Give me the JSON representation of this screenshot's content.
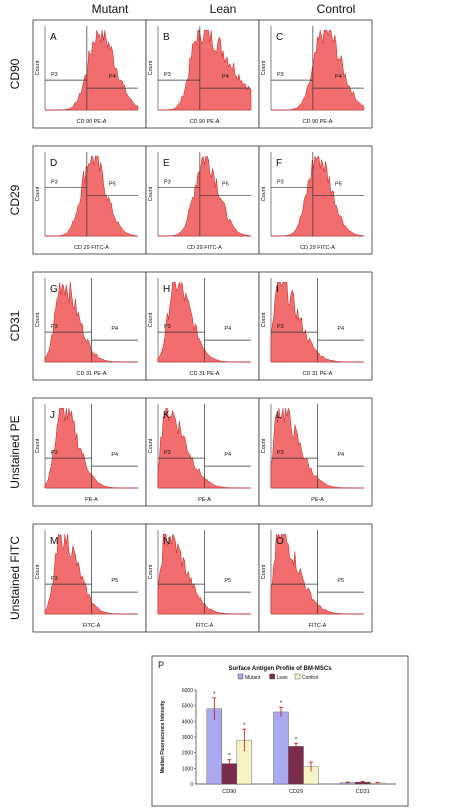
{
  "columns": [
    "Mutant",
    "Lean",
    "Control"
  ],
  "rows": [
    "CD90",
    "CD29",
    "CD31",
    "Unstained PE",
    "Unstained FITC"
  ],
  "count_label": "Count",
  "panels": [
    {
      "letter": "A",
      "xlabel": "CD 90 PE-A",
      "left_gate": "P3",
      "right_gate": "P4",
      "shape": "high_right"
    },
    {
      "letter": "B",
      "xlabel": "CD 90 PE-A",
      "left_gate": "P3",
      "right_gate": "P4",
      "shape": "mid_skew"
    },
    {
      "letter": "C",
      "xlabel": "CD 90 PE-A",
      "left_gate": "P3",
      "right_gate": "P4",
      "shape": "high_right"
    },
    {
      "letter": "D",
      "xlabel": "CD 29 FITC-A",
      "left_gate": "P3",
      "right_gate": "P5",
      "shape": "mid"
    },
    {
      "letter": "E",
      "xlabel": "CD 29 FITC-A",
      "left_gate": "P3",
      "right_gate": "P5",
      "shape": "mid"
    },
    {
      "letter": "F",
      "xlabel": "CD 29 FITC-A",
      "left_gate": "P3",
      "right_gate": "P5",
      "shape": "mid"
    },
    {
      "letter": "G",
      "xlabel": "CD 31 PE-A",
      "left_gate": "P3",
      "right_gate": "P4",
      "shape": "low"
    },
    {
      "letter": "H",
      "xlabel": "CD 31 PE-A",
      "left_gate": "P3",
      "right_gate": "P4",
      "shape": "low"
    },
    {
      "letter": "I",
      "xlabel": "CD 31 PE-A",
      "left_gate": "P3",
      "right_gate": "P4",
      "shape": "verylow"
    },
    {
      "letter": "J",
      "xlabel": "PE-A",
      "left_gate": "P3",
      "right_gate": "P4",
      "shape": "low"
    },
    {
      "letter": "K",
      "xlabel": "PE-A",
      "left_gate": "P3",
      "right_gate": "P4",
      "shape": "verylow"
    },
    {
      "letter": "L",
      "xlabel": "PE-A",
      "left_gate": "P3",
      "right_gate": "P4",
      "shape": "verylow"
    },
    {
      "letter": "M",
      "xlabel": "FITC-A",
      "left_gate": "P3",
      "right_gate": "P5",
      "shape": "low"
    },
    {
      "letter": "N",
      "xlabel": "FITC-A",
      "left_gate": "",
      "right_gate": "P5",
      "shape": "verylow"
    },
    {
      "letter": "O",
      "xlabel": "FITC-A",
      "left_gate": "",
      "right_gate": "P5",
      "shape": "verylow"
    }
  ],
  "bar_panel_letter": "P",
  "colors": {
    "histogram": "#f26d6d",
    "histogram_edge": "#c41f1f",
    "mutant": "#a9a9ef",
    "lean": "#7a2a4a",
    "control": "#f7f3c4",
    "error": "#c01010"
  },
  "chart_data": {
    "type": "bar",
    "title": "Surface Antigen Profile of BM-MSCs",
    "ylabel": "Median Fluorescence Intensity",
    "categories": [
      "CD90",
      "CD29",
      "CD31"
    ],
    "ylim": [
      0,
      6000
    ],
    "yticks": [
      "0",
      "1000",
      "2000",
      "3000",
      "4000",
      "5000",
      "6000"
    ],
    "series": [
      {
        "name": "Mutant",
        "values": [
          4800,
          4600,
          80
        ],
        "errors": [
          700,
          300,
          40
        ]
      },
      {
        "name": "Lean",
        "values": [
          1300,
          2400,
          120
        ],
        "errors": [
          250,
          200,
          50
        ]
      },
      {
        "name": "Control",
        "values": [
          2800,
          1100,
          60
        ],
        "errors": [
          700,
          300,
          30
        ]
      }
    ],
    "annotations": [
      "*",
      "*",
      "*",
      "*",
      "*"
    ],
    "legend": "top"
  }
}
